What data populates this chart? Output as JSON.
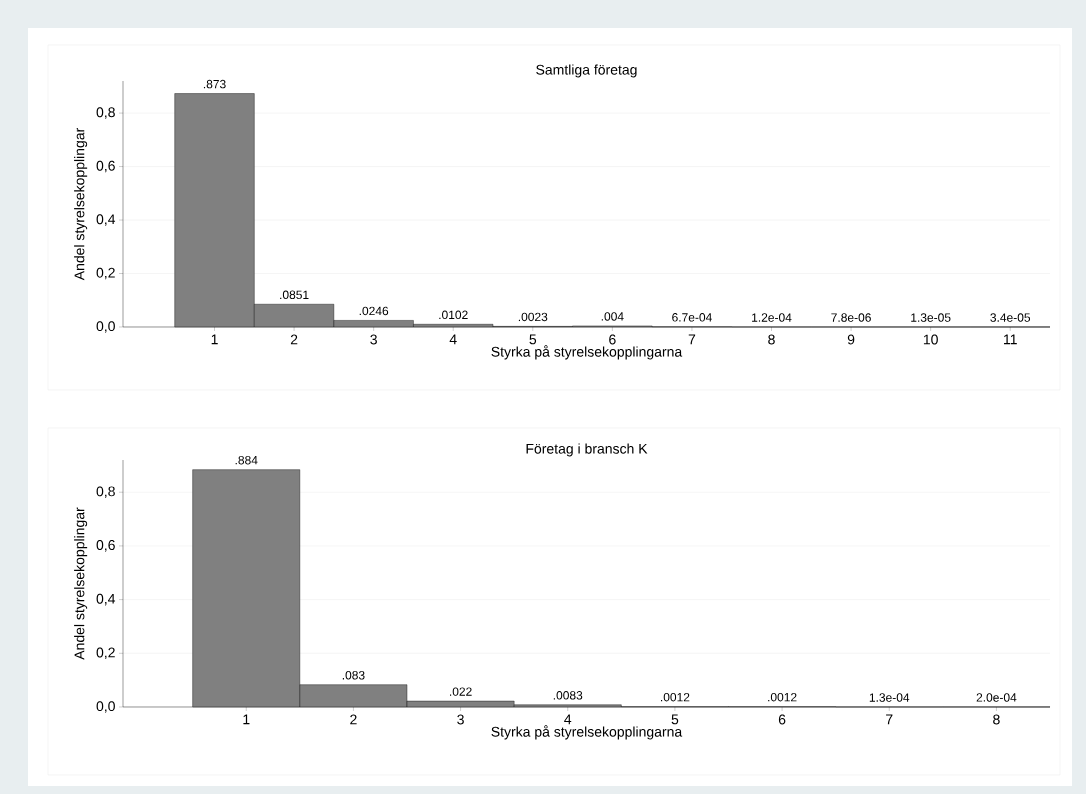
{
  "chart_data": [
    {
      "type": "bar",
      "title": "Samtliga företag",
      "xlabel": "Styrka på styrelsekopplingarna",
      "ylabel": "Andel styrelsekopplingar",
      "categories": [
        "1",
        "2",
        "3",
        "4",
        "5",
        "6",
        "7",
        "8",
        "9",
        "10",
        "11"
      ],
      "values": [
        0.873,
        0.0851,
        0.0246,
        0.0102,
        0.0023,
        0.004,
        0.00067,
        0.00012,
        7.8e-06,
        1.3e-05,
        3.4e-05
      ],
      "value_labels": [
        ".873",
        ".0851",
        ".0246",
        ".0102",
        ".0023",
        ".004",
        "6.7e-04",
        "1.2e-04",
        "7.8e-06",
        "1.3e-05",
        "3.4e-05"
      ],
      "color": "#808080",
      "ylim": [
        0,
        0.92
      ],
      "yticks": [
        {
          "value": 0,
          "label": "0,0"
        },
        {
          "value": 0.2,
          "label": "0,2"
        },
        {
          "value": 0.4,
          "label": "0,4"
        },
        {
          "value": 0.6,
          "label": "0,6"
        },
        {
          "value": 0.8,
          "label": "0,8"
        }
      ],
      "grid": "y"
    },
    {
      "type": "bar",
      "title": "Företag i bransch K",
      "xlabel": "Styrka på styrelsekopplingarna",
      "ylabel": "Andel styrelsekopplingar",
      "categories": [
        "1",
        "2",
        "3",
        "4",
        "5",
        "6",
        "7",
        "8"
      ],
      "values": [
        0.884,
        0.083,
        0.022,
        0.0083,
        0.0012,
        0.0012,
        0.00013,
        0.0002
      ],
      "value_labels": [
        ".884",
        ".083",
        ".022",
        ".0083",
        ".0012",
        ".0012",
        "1.3e-04",
        "2.0e-04"
      ],
      "color": "#808080",
      "ylim": [
        0,
        0.92
      ],
      "yticks": [
        {
          "value": 0,
          "label": "0,0"
        },
        {
          "value": 0.2,
          "label": "0,2"
        },
        {
          "value": 0.4,
          "label": "0,4"
        },
        {
          "value": 0.6,
          "label": "0,6"
        },
        {
          "value": 0.8,
          "label": "0,8"
        }
      ],
      "grid": "y"
    }
  ]
}
